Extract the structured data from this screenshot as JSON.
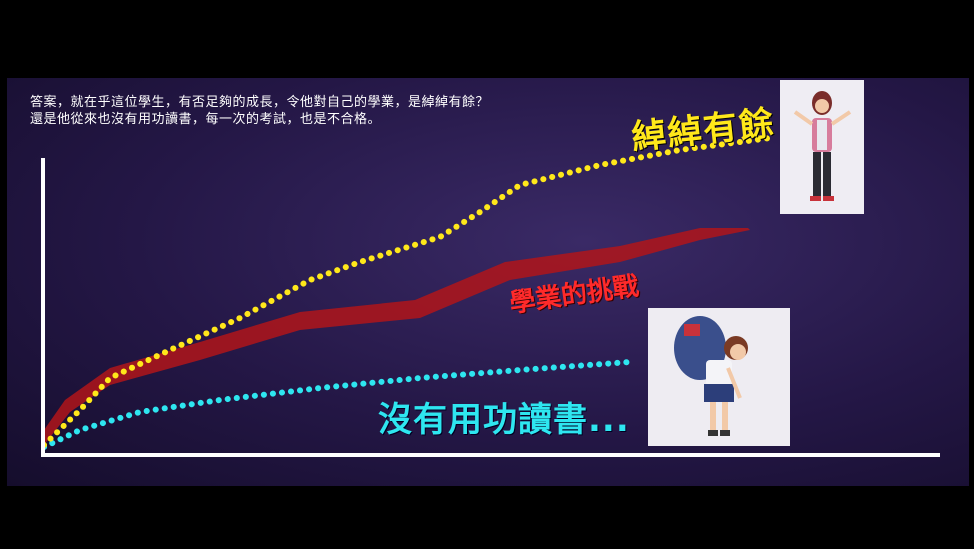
{
  "caption": {
    "line1": "答案，就在乎這位學生，有否足夠的成長，令他對自己的學業，是綽綽有餘？",
    "line2": "還是他從來也沒有用功讀書，每一次的考試，也是不合格。"
  },
  "labels": {
    "surplus": "綽綽有餘",
    "challenge": "學業的挑戰",
    "no_study": "沒有用功讀書..."
  },
  "colors": {
    "surplus": "#ffe81a",
    "challenge": "#b0151a",
    "no_study": "#2ee6f0",
    "axis": "#ffffff"
  },
  "illustrations": {
    "top_right": "girl-shrugging-with-backpack",
    "bottom_right": "girl-exhausted-heavy-backpack"
  }
}
